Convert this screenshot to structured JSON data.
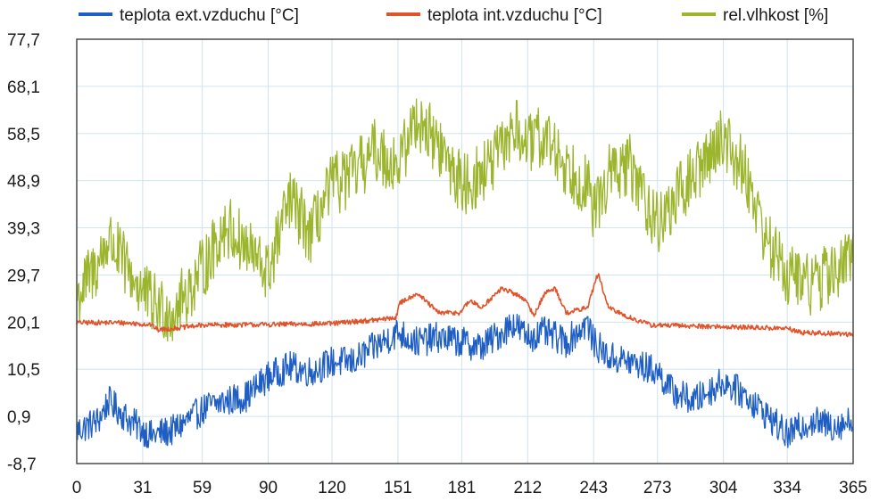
{
  "chart_data": {
    "type": "line",
    "x": {
      "ticks": [
        0,
        31,
        59,
        90,
        120,
        151,
        181,
        212,
        243,
        273,
        304,
        334,
        365
      ],
      "tick_labels": [
        "0",
        "31",
        "59",
        "90",
        "120",
        "151",
        "181",
        "212",
        "243",
        "273",
        "304",
        "334",
        "365"
      ],
      "range": [
        0,
        365
      ]
    },
    "y": {
      "ticks": [
        -8.7,
        0.9,
        10.5,
        20.1,
        29.7,
        39.3,
        48.9,
        58.5,
        68.1,
        77.7
      ],
      "tick_labels": [
        "-8,7",
        "0,9",
        "10,5",
        "20,1",
        "29,7",
        "39,3",
        "48,9",
        "58,5",
        "68,1",
        "77,7"
      ],
      "range": [
        -8.7,
        77.7
      ]
    },
    "grid": true,
    "legend_position": "top",
    "series": [
      {
        "name": "teplota ext.vzduchu [°C]",
        "color": "#1f5fc4",
        "noise": 3.2,
        "x": [
          0,
          10,
          15,
          25,
          35,
          45,
          55,
          62,
          70,
          80,
          90,
          100,
          110,
          120,
          130,
          140,
          151,
          160,
          170,
          181,
          190,
          200,
          205,
          212,
          220,
          230,
          240,
          243,
          250,
          260,
          273,
          280,
          290,
          304,
          315,
          325,
          334,
          345,
          355,
          365
        ],
        "values": [
          -2,
          0,
          4,
          0,
          -3,
          -2,
          1,
          3,
          4,
          5,
          9,
          11,
          10,
          12,
          12,
          15,
          18,
          16,
          17,
          16,
          15,
          18,
          20,
          17,
          18,
          16,
          20,
          16,
          13,
          12,
          10,
          6,
          4,
          8,
          5,
          1,
          -3,
          0,
          -1,
          0
        ]
      },
      {
        "name": "teplota int.vzduchu [°C]",
        "color": "#e0542b",
        "noise": 0.5,
        "x": [
          0,
          20,
          35,
          38,
          60,
          90,
          120,
          130,
          140,
          150,
          152,
          160,
          165,
          170,
          180,
          185,
          190,
          200,
          210,
          215,
          220,
          225,
          230,
          240,
          245,
          250,
          255,
          260,
          270,
          300,
          334,
          340,
          365
        ],
        "values": [
          20,
          20,
          19.6,
          18.5,
          19.5,
          19.6,
          19.8,
          20.2,
          20.5,
          21,
          24,
          26,
          24,
          22,
          22,
          24.5,
          23,
          27,
          25,
          21.5,
          26,
          27,
          22,
          23,
          30,
          23,
          22,
          21,
          19.5,
          19.2,
          18.8,
          18,
          17.6
        ]
      },
      {
        "name": "rel.vlhkost [%]",
        "color": "#9bb52d",
        "noise": 6.5,
        "x": [
          0,
          10,
          15,
          25,
          35,
          45,
          55,
          62,
          70,
          80,
          90,
          100,
          110,
          120,
          130,
          140,
          151,
          160,
          170,
          181,
          190,
          200,
          205,
          212,
          220,
          230,
          240,
          243,
          250,
          260,
          273,
          280,
          290,
          304,
          315,
          325,
          334,
          345,
          355,
          365
        ],
        "values": [
          25,
          32,
          37,
          30,
          24,
          22,
          28,
          33,
          40,
          35,
          30,
          45,
          38,
          48,
          50,
          55,
          52,
          62,
          56,
          48,
          50,
          55,
          60,
          56,
          58,
          52,
          48,
          42,
          50,
          52,
          40,
          44,
          50,
          58,
          50,
          36,
          30,
          28,
          30,
          33
        ]
      }
    ]
  }
}
